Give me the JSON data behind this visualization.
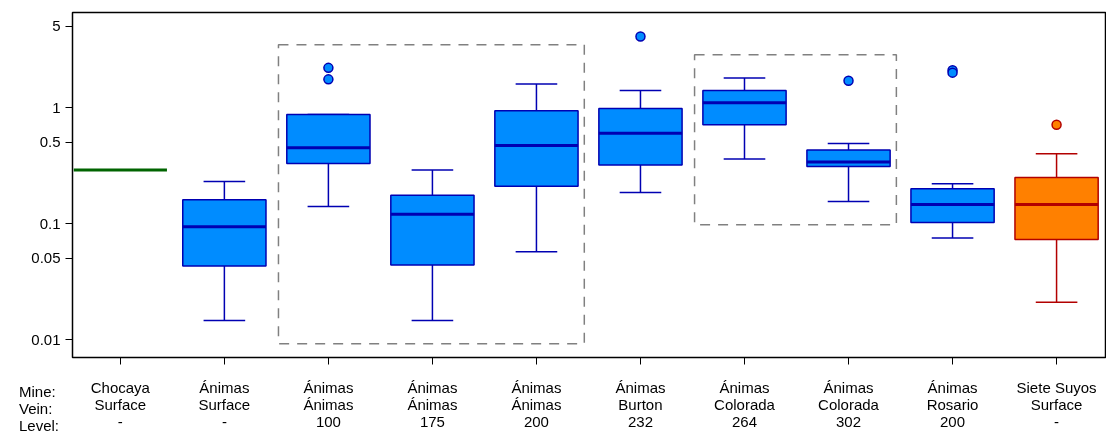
{
  "chart_data": {
    "type": "box",
    "xlabel": "Mine:\nVein:\nLevel:",
    "categories": [
      "Chocaya\nSurface\n-",
      "Ánimas\nSurface\n-",
      "Ánimas\nÁnimas\n100",
      "Ánimas\nÁnimas\n175",
      "Ánimas\nÁnimas\n200",
      "Ánimas\nBurton\n232",
      "Ánimas\nColorada\n264",
      "Ánimas\nColorada\n302",
      "Ánimas\nRosario\n200",
      "Siete Suyos\nSurface\n-"
    ],
    "colors": [
      "#006400",
      "#008cff",
      "#008cff",
      "#008cff",
      "#008cff",
      "#008cff",
      "#008cff",
      "#008cff",
      "#008cff",
      "#ff8000"
    ],
    "boxes": [
      {
        "low": 0.29,
        "q1": 0.29,
        "median": 0.29,
        "q3": 0.29,
        "high": 0.29
      },
      {
        "low": 0.0146,
        "q1": 0.043,
        "median": 0.094,
        "q3": 0.16,
        "high": 0.23
      },
      {
        "low": 0.14,
        "q1": 0.33,
        "median": 0.45,
        "q3": 0.87,
        "high": 0.87,
        "outliers": [
          2.2,
          1.75
        ]
      },
      {
        "low": 0.0146,
        "q1": 0.044,
        "median": 0.12,
        "q3": 0.175,
        "high": 0.29
      },
      {
        "low": 0.057,
        "q1": 0.21,
        "median": 0.47,
        "q3": 0.94,
        "high": 1.6
      },
      {
        "low": 0.185,
        "q1": 0.32,
        "median": 0.6,
        "q3": 0.98,
        "high": 1.4,
        "outliers": [
          4.1
        ]
      },
      {
        "low": 0.36,
        "q1": 0.71,
        "median": 1.1,
        "q3": 1.4,
        "high": 1.8
      },
      {
        "low": 0.155,
        "q1": 0.31,
        "median": 0.34,
        "q3": 0.43,
        "high": 0.49,
        "outliers": [
          1.7
        ]
      },
      {
        "low": 0.075,
        "q1": 0.102,
        "median": 0.146,
        "q3": 0.2,
        "high": 0.22,
        "outliers": [
          2.1,
          2.0
        ]
      },
      {
        "low": 0.021,
        "q1": 0.073,
        "median": 0.146,
        "q3": 0.25,
        "high": 0.4,
        "outliers": [
          0.71
        ]
      }
    ],
    "log": "y",
    "ylim": [
      0.007,
      6.6
    ],
    "yticks": [
      0.01,
      0.05,
      0.1,
      0.5,
      1,
      5
    ],
    "grid": false
  }
}
